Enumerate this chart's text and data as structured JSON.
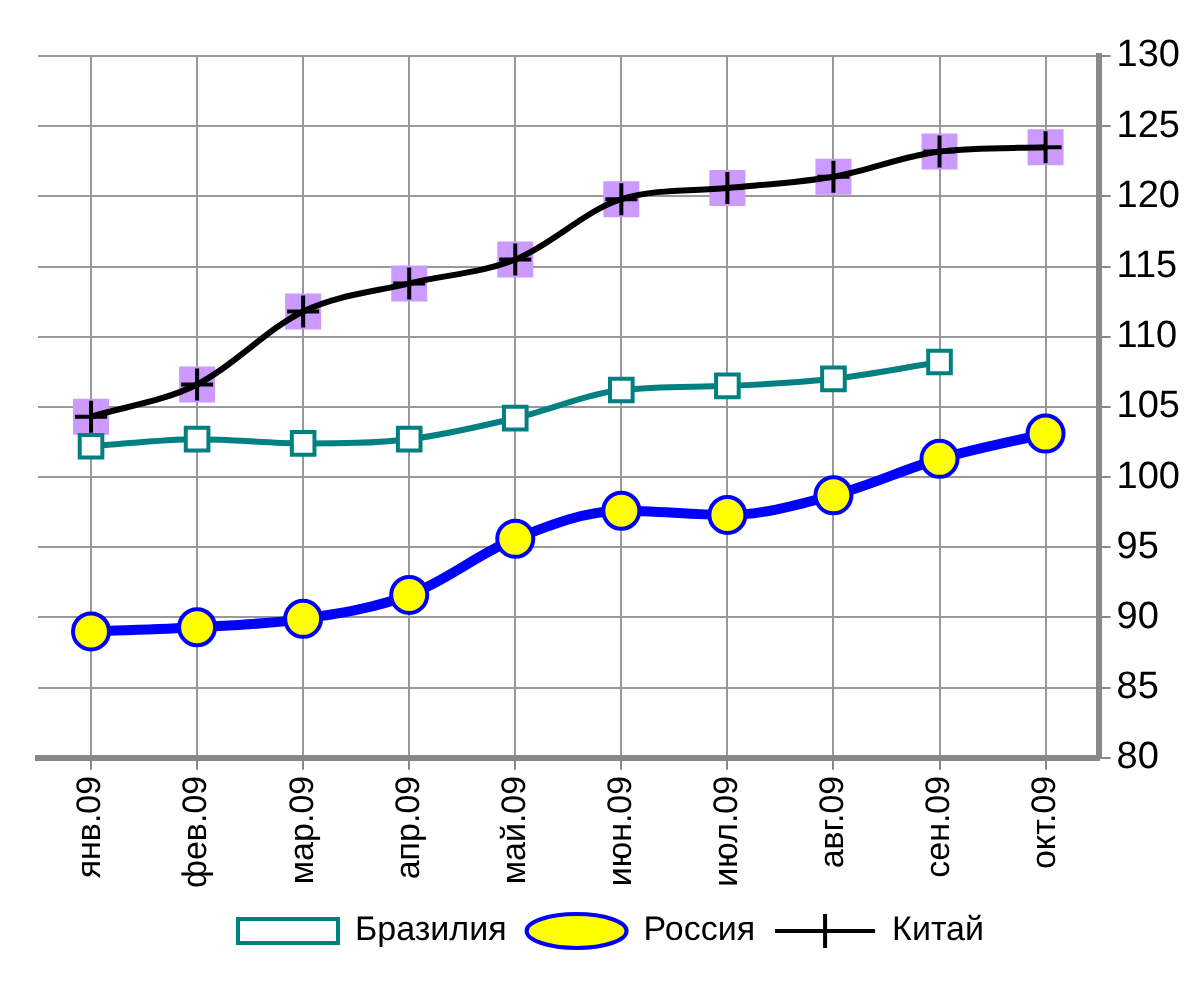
{
  "chart_data": {
    "type": "line",
    "categories": [
      "янв.09",
      "фев.09",
      "мар.09",
      "апр.09",
      "май.09",
      "июн.09",
      "июл.09",
      "авг.09",
      "сен.09",
      "окт.09"
    ],
    "series": [
      {
        "name": "Бразилия",
        "color": "#008080",
        "marker": "square",
        "values": [
          102.2,
          102.7,
          102.4,
          102.7,
          104.2,
          106.2,
          106.5,
          107.0,
          108.2,
          null
        ]
      },
      {
        "name": "Россия",
        "color": "#0000ff",
        "marker": "circle",
        "values": [
          89.0,
          89.3,
          89.9,
          91.6,
          95.6,
          97.6,
          97.3,
          98.7,
          101.3,
          103.1
        ]
      },
      {
        "name": "Китай",
        "color": "#000000",
        "marker": "cross",
        "values": [
          104.3,
          106.6,
          111.8,
          113.8,
          115.5,
          119.8,
          120.6,
          121.4,
          123.2,
          123.5
        ]
      }
    ],
    "ylim": [
      80,
      130
    ],
    "yticks": [
      80,
      85,
      90,
      95,
      100,
      105,
      110,
      115,
      120,
      125,
      130
    ],
    "grid": true,
    "legend": "bottom",
    "line_style": "solid"
  }
}
